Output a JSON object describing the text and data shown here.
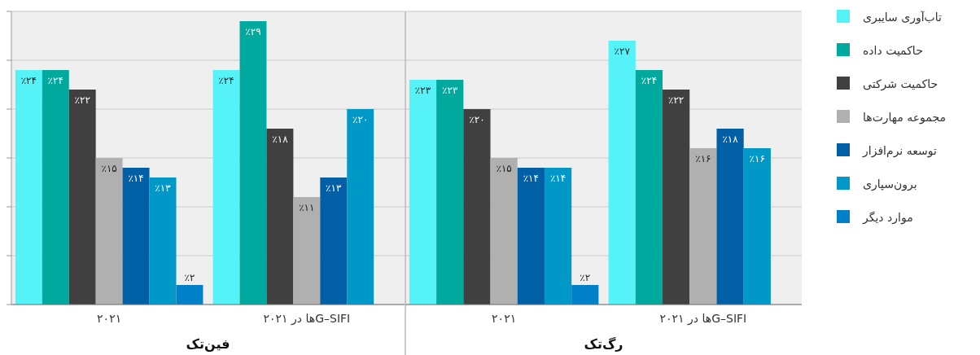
{
  "chart_data": [
    {
      "type": "bar",
      "xlabel": "فین‌تک",
      "categories": [
        "۲۰۲۱",
        "G–SIFIها در ۲۰۲۱"
      ],
      "ylim": [
        0,
        30
      ],
      "yticks": [
        {
          "value": 0,
          "label": null
        },
        {
          "value": 5,
          "label": null
        },
        {
          "value": 10,
          "label": null
        },
        {
          "value": 15,
          "label": null
        },
        {
          "value": 20,
          "label": null
        },
        {
          "value": 25,
          "label": null
        },
        {
          "value": 30,
          "label": null
        }
      ],
      "tick_labels": "x",
      "grid": "y",
      "series": [
        {
          "color": "#55f3f8",
          "values": [
            24,
            24
          ],
          "value_labels": [
            "٪۲۴",
            "٪۲۴"
          ]
        },
        {
          "color": "#00a99d",
          "values": [
            24,
            29
          ],
          "value_labels": [
            "٪۲۴",
            "٪۲۹"
          ]
        },
        {
          "color": "#404040",
          "values": [
            22,
            18
          ],
          "value_labels": [
            "٪۲۲",
            "٪۱۸"
          ]
        },
        {
          "color": "#b0b0b0",
          "values": [
            15,
            11
          ],
          "value_labels": [
            "٪۱۵",
            "٪۱۱"
          ]
        },
        {
          "color": "#005fa5",
          "values": [
            14,
            13
          ],
          "value_labels": [
            "٪۱۴",
            "٪۱۳"
          ]
        },
        {
          "color": "#0098c6",
          "values": [
            13,
            20
          ],
          "value_labels": [
            "٪۱۳",
            "٪۲۰"
          ]
        },
        {
          "color": "#0080c8",
          "values": [
            2,
            null
          ],
          "value_labels": [
            "٪۲",
            null
          ]
        }
      ]
    },
    {
      "type": "bar",
      "xlabel": "رگ‌تک",
      "categories": [
        "۲۰۲۱",
        "G–SIFIها در ۲۰۲۱"
      ],
      "ylim": [
        0,
        30
      ],
      "yticks": [
        {
          "value": 0,
          "label": null
        },
        {
          "value": 5,
          "label": null
        },
        {
          "value": 10,
          "label": null
        },
        {
          "value": 15,
          "label": null
        },
        {
          "value": 20,
          "label": null
        },
        {
          "value": 25,
          "label": null
        },
        {
          "value": 30,
          "label": null
        }
      ],
      "tick_labels": "x",
      "grid": "y",
      "legend": "right",
      "series": [
        {
          "name": "تاب‌آوری سایبری",
          "color": "#55f3f8",
          "values": [
            23,
            27
          ],
          "value_labels": [
            "٪۲۳",
            "٪۲۷"
          ]
        },
        {
          "name": "حاکمیت داده",
          "color": "#00a99d",
          "values": [
            23,
            24
          ],
          "value_labels": [
            "٪۲۳",
            "٪۲۴"
          ]
        },
        {
          "name": "حاکمیت شرکتی",
          "color": "#404040",
          "values": [
            20,
            22
          ],
          "value_labels": [
            "٪۲۰",
            "٪۲۲"
          ]
        },
        {
          "name": "مجموعه مهارت‌ها",
          "color": "#b0b0b0",
          "values": [
            15,
            16
          ],
          "value_labels": [
            "٪۱۵",
            "٪۱۶"
          ]
        },
        {
          "name": "توسعه نرم‌افزار",
          "color": "#005fa5",
          "values": [
            14,
            18
          ],
          "value_labels": [
            "٪۱۴",
            "٪۱۸"
          ]
        },
        {
          "name": "برون‌سپاری",
          "color": "#0098c6",
          "values": [
            14,
            16
          ],
          "value_labels": [
            "٪۱۴",
            "٪۱۶"
          ]
        },
        {
          "name": "موارد دیگر",
          "color": "#0080c8",
          "values": [
            2,
            null
          ],
          "value_labels": [
            "٪۲",
            null
          ]
        }
      ]
    }
  ]
}
